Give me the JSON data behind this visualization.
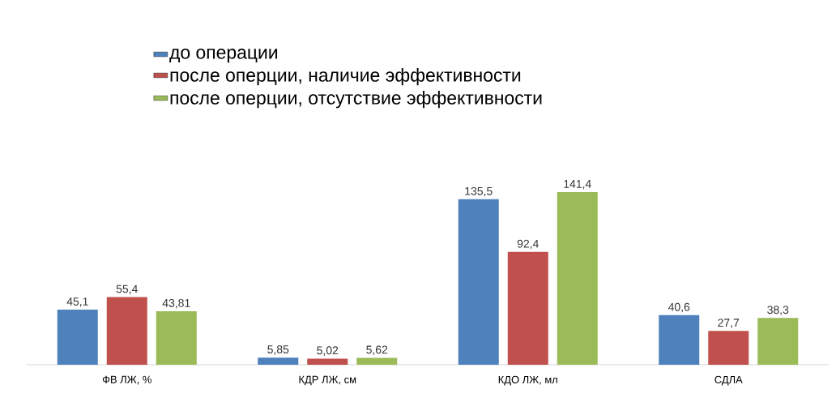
{
  "chart_data": {
    "type": "bar",
    "categories": [
      "ФВ ЛЖ, %",
      "КДР ЛЖ, см",
      "КДО ЛЖ, мл",
      "СДЛА"
    ],
    "series": [
      {
        "name": "до операции",
        "color": "#4f81bd",
        "values": [
          45.1,
          5.85,
          135.5,
          40.6
        ],
        "value_labels": [
          "45,1",
          "5,85",
          "135,5",
          "40,6"
        ]
      },
      {
        "name": "после оперции, наличие эффективности",
        "color": "#c0504d",
        "values": [
          55.4,
          5.02,
          92.4,
          27.7
        ],
        "value_labels": [
          "55,4",
          "5,02",
          "92,4",
          "27,7"
        ]
      },
      {
        "name": "после оперции, отсутствие эффективности",
        "color": "#9bbb59",
        "values": [
          43.81,
          5.62,
          141.4,
          38.3
        ],
        "value_labels": [
          "43,81",
          "5,62",
          "141,4",
          "38,3"
        ]
      }
    ],
    "legend": "top left"
  }
}
